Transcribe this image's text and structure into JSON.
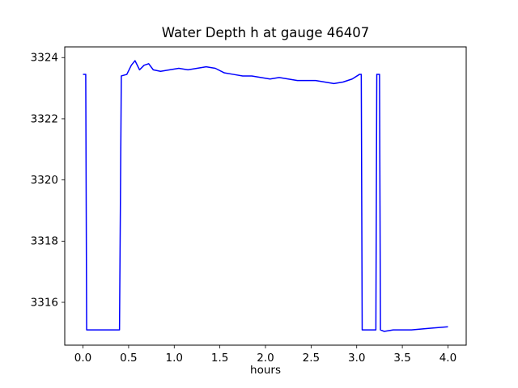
{
  "chart_data": {
    "type": "line",
    "title": "Water Depth h at gauge 46407",
    "xlabel": "hours",
    "ylabel": "",
    "legend": "none",
    "grid": false,
    "line_color": "#0000ff",
    "axis_color": "#000000",
    "background_color": "#ffffff",
    "xlim": [
      -0.2,
      4.2
    ],
    "ylim": [
      3314.6,
      3324.35
    ],
    "xticks": [
      0.0,
      0.5,
      1.0,
      1.5,
      2.0,
      2.5,
      3.0,
      3.5,
      4.0
    ],
    "xtick_labels": [
      "0.0",
      "0.5",
      "1.0",
      "1.5",
      "2.0",
      "2.5",
      "3.0",
      "3.5",
      "4.0"
    ],
    "yticks": [
      3316,
      3318,
      3320,
      3322,
      3324
    ],
    "ytick_labels": [
      "3316",
      "3318",
      "3320",
      "3322",
      "3324"
    ],
    "series": [
      {
        "name": "water-depth-h",
        "x": [
          0.0,
          0.03,
          0.04,
          0.4,
          0.42,
          0.48,
          0.53,
          0.57,
          0.62,
          0.67,
          0.72,
          0.77,
          0.85,
          0.95,
          1.05,
          1.15,
          1.25,
          1.35,
          1.45,
          1.55,
          1.65,
          1.75,
          1.85,
          1.95,
          2.05,
          2.15,
          2.25,
          2.35,
          2.45,
          2.55,
          2.65,
          2.75,
          2.85,
          2.95,
          3.03,
          3.05,
          3.06,
          3.21,
          3.22,
          3.25,
          3.26,
          3.3,
          3.4,
          3.6,
          3.8,
          4.0
        ],
        "y": [
          3323.45,
          3323.45,
          3315.1,
          3315.1,
          3323.4,
          3323.45,
          3323.75,
          3323.9,
          3323.6,
          3323.75,
          3323.8,
          3323.6,
          3323.55,
          3323.6,
          3323.65,
          3323.6,
          3323.65,
          3323.7,
          3323.65,
          3323.5,
          3323.45,
          3323.4,
          3323.4,
          3323.35,
          3323.3,
          3323.35,
          3323.3,
          3323.25,
          3323.25,
          3323.25,
          3323.2,
          3323.15,
          3323.2,
          3323.3,
          3323.45,
          3323.45,
          3315.1,
          3315.1,
          3323.45,
          3323.45,
          3315.1,
          3315.05,
          3315.1,
          3315.1,
          3315.15,
          3315.2
        ]
      }
    ]
  }
}
